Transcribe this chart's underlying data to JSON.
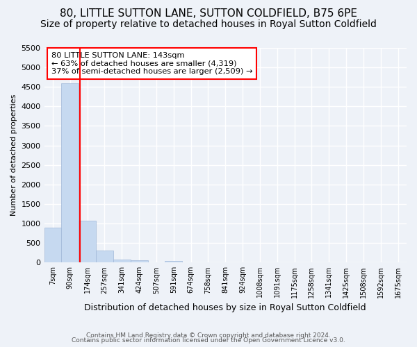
{
  "title": "80, LITTLE SUTTON LANE, SUTTON COLDFIELD, B75 6PE",
  "subtitle": "Size of property relative to detached houses in Royal Sutton Coldfield",
  "xlabel": "Distribution of detached houses by size in Royal Sutton Coldfield",
  "ylabel": "Number of detached properties",
  "bin_labels": [
    "7sqm",
    "90sqm",
    "174sqm",
    "257sqm",
    "341sqm",
    "424sqm",
    "507sqm",
    "591sqm",
    "674sqm",
    "758sqm",
    "841sqm",
    "924sqm",
    "1008sqm",
    "1091sqm",
    "1175sqm",
    "1258sqm",
    "1341sqm",
    "1425sqm",
    "1508sqm",
    "1592sqm",
    "1675sqm"
  ],
  "bar_heights": [
    900,
    4600,
    1070,
    300,
    80,
    65,
    0,
    45,
    0,
    0,
    0,
    0,
    0,
    0,
    0,
    0,
    0,
    0,
    0,
    0,
    0
  ],
  "bar_color": "#c6d9f0",
  "bar_edge_color": "#a0b8d8",
  "vline_x": 1.57,
  "vline_color": "red",
  "ylim": [
    0,
    5500
  ],
  "yticks": [
    0,
    500,
    1000,
    1500,
    2000,
    2500,
    3000,
    3500,
    4000,
    4500,
    5000,
    5500
  ],
  "annotation_box_text": "80 LITTLE SUTTON LANE: 143sqm\n← 63% of detached houses are smaller (4,319)\n37% of semi-detached houses are larger (2,509) →",
  "annotation_box_color": "red",
  "footer_line1": "Contains HM Land Registry data © Crown copyright and database right 2024.",
  "footer_line2": "Contains public sector information licensed under the Open Government Licence v3.0.",
  "bg_color": "#eef2f8",
  "grid_color": "white",
  "title_fontsize": 11,
  "subtitle_fontsize": 10
}
